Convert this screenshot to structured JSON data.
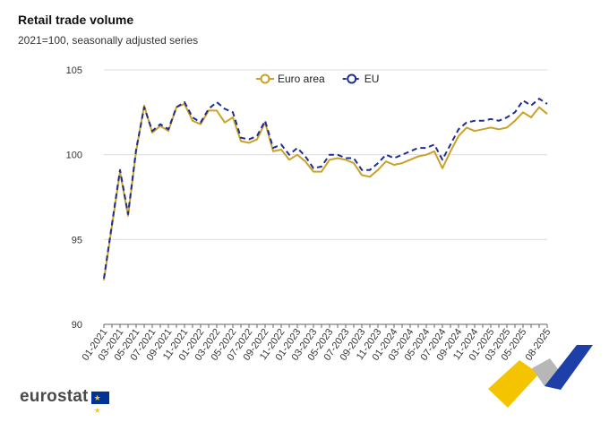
{
  "title": "Retail trade volume",
  "subtitle": "2021=100, seasonally adjusted series",
  "logo": {
    "text": "eurostat",
    "flag_icon": "eu-flag-icon"
  },
  "colors": {
    "euro_area": "#c9a227",
    "eu": "#1f2d8f",
    "grid": "#dcdcdc",
    "axis": "#666666"
  },
  "chart_data": {
    "type": "line",
    "title": "Retail trade volume",
    "subtitle": "2021=100, seasonally adjusted series",
    "xlabel": "",
    "ylabel": "",
    "ylim": [
      90,
      105
    ],
    "yticks": [
      90,
      95,
      100,
      105
    ],
    "grid": "horizontal",
    "legend_position": "top-center",
    "x": [
      "01-2021",
      "02-2021",
      "03-2021",
      "04-2021",
      "05-2021",
      "06-2021",
      "07-2021",
      "08-2021",
      "09-2021",
      "10-2021",
      "11-2021",
      "12-2021",
      "01-2022",
      "02-2022",
      "03-2022",
      "04-2022",
      "05-2022",
      "06-2022",
      "07-2022",
      "08-2022",
      "09-2022",
      "10-2022",
      "11-2022",
      "12-2022",
      "01-2023",
      "02-2023",
      "03-2023",
      "04-2023",
      "05-2023",
      "06-2023",
      "07-2023",
      "08-2023",
      "09-2023",
      "10-2023",
      "11-2023",
      "12-2023",
      "01-2024",
      "02-2024",
      "03-2024",
      "04-2024",
      "05-2024",
      "06-2024",
      "07-2024",
      "08-2024",
      "09-2024",
      "10-2024",
      "11-2024",
      "12-2024",
      "01-2025",
      "02-2025",
      "03-2025",
      "04-2025",
      "05-2025",
      "06-2025",
      "07-2025",
      "08-2025"
    ],
    "tick_labels": [
      "01-2021",
      "03-2021",
      "05-2021",
      "07-2021",
      "09-2021",
      "11-2021",
      "01-2022",
      "03-2022",
      "05-2022",
      "07-2022",
      "09-2022",
      "11-2022",
      "01-2023",
      "03-2023",
      "05-2023",
      "07-2023",
      "09-2023",
      "11-2023",
      "01-2024",
      "03-2024",
      "05-2024",
      "07-2024",
      "09-2024",
      "11-2024",
      "01-2025",
      "03-2025",
      "05-2025",
      "08-2025"
    ],
    "series": [
      {
        "name": "Euro area",
        "style": "solid",
        "values": [
          92.6,
          95.8,
          99.0,
          96.4,
          100.2,
          102.9,
          101.3,
          101.7,
          101.4,
          102.8,
          103.0,
          102.0,
          101.8,
          102.6,
          102.6,
          101.9,
          102.2,
          100.8,
          100.7,
          100.9,
          101.9,
          100.2,
          100.3,
          99.7,
          100.0,
          99.6,
          99.0,
          99.0,
          99.7,
          99.8,
          99.7,
          99.5,
          98.8,
          98.7,
          99.1,
          99.6,
          99.4,
          99.5,
          99.7,
          99.9,
          100.0,
          100.2,
          99.2,
          100.2,
          101.1,
          101.6,
          101.4,
          101.5,
          101.6,
          101.5,
          101.6,
          102.0,
          102.5,
          102.2,
          102.8,
          102.4
        ]
      },
      {
        "name": "EU",
        "style": "dashed",
        "values": [
          92.7,
          95.9,
          99.1,
          96.5,
          100.3,
          102.8,
          101.4,
          101.8,
          101.5,
          102.8,
          103.1,
          102.2,
          101.9,
          102.7,
          103.1,
          102.7,
          102.5,
          101.0,
          100.9,
          101.1,
          102.0,
          100.4,
          100.6,
          100.0,
          100.4,
          99.9,
          99.2,
          99.3,
          100.0,
          100.0,
          99.8,
          99.8,
          99.1,
          99.1,
          99.5,
          100.0,
          99.8,
          100.0,
          100.2,
          100.4,
          100.4,
          100.6,
          99.7,
          100.6,
          101.5,
          101.9,
          102.0,
          102.0,
          102.1,
          102.0,
          102.2,
          102.5,
          103.2,
          102.9,
          103.3,
          103.0
        ]
      }
    ]
  }
}
